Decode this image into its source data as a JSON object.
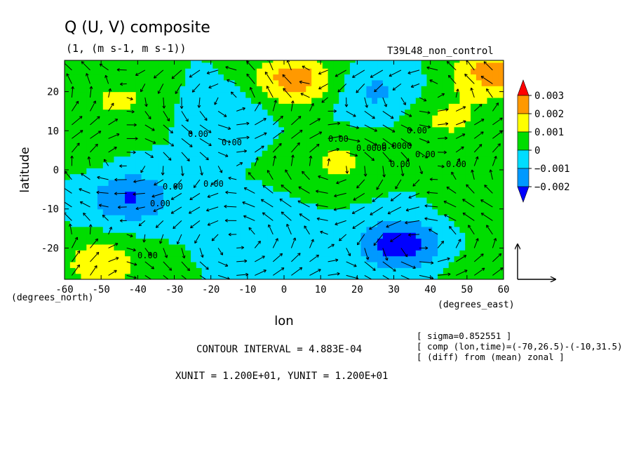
{
  "chart_data": {
    "type": "heatmap",
    "title": "Q (U, V) composite",
    "subtitle": "(1, (m s-1, m s-1))",
    "run_label": "T39L48_non_control",
    "xlabel": "lon",
    "ylabel": "latitude",
    "x_unit_label": "(degrees_east)",
    "y_unit_label": "(degrees_north)",
    "xlim": [
      -60,
      60
    ],
    "ylim": [
      -28,
      28
    ],
    "x_ticks": [
      "-60",
      "-50",
      "-40",
      "-30",
      "-20",
      "-10",
      "0",
      "10",
      "20",
      "30",
      "40",
      "50",
      "60"
    ],
    "y_ticks": [
      "20",
      "10",
      "0",
      "-10",
      "-20"
    ],
    "colorbar": {
      "levels": [
        "0.003",
        "0.002",
        "0.001",
        "0",
        "−0.001",
        "−0.002"
      ],
      "colors": [
        "#ff0000",
        "#ff9900",
        "#ffff00",
        "#00dd00",
        "#00ddff",
        "#0099ff",
        "#0000ff"
      ]
    },
    "contour_labels": [
      "0.00",
      "0.00",
      "0.00",
      "0.0000",
      "0.0000",
      "0.00",
      "0.00",
      "0.00",
      "0.00",
      "0.00",
      "0.00",
      "0.00",
      "0.00"
    ],
    "contour_interval": "CONTOUR INTERVAL = 4.883E-04",
    "vector_units": "XUNIT = 1.200E+01, YUNIT = 1.200E+01",
    "info": [
      "[ sigma=0.852551 ]",
      "[ comp (lon,time)=(-70,26.5)-(-10,31.5)",
      "[ (diff) from (mean) zonal ]"
    ],
    "anomaly_centers": [
      {
        "lon": -45,
        "lat": 18,
        "value": 0.0012
      },
      {
        "lon": 3,
        "lat": 23,
        "value": 0.0026
      },
      {
        "lon": 25,
        "lat": 20,
        "value": -0.0012
      },
      {
        "lon": 45,
        "lat": 13,
        "value": 0.0012
      },
      {
        "lon": 57,
        "lat": 25,
        "value": 0.0025
      },
      {
        "lon": -15,
        "lat": 15,
        "value": -0.0008
      },
      {
        "lon": 15,
        "lat": 2,
        "value": 0.0012
      },
      {
        "lon": -42,
        "lat": -7,
        "value": -0.0021
      },
      {
        "lon": 32,
        "lat": -19,
        "value": -0.0027
      },
      {
        "lon": -50,
        "lat": -24,
        "value": 0.0017
      },
      {
        "lon": -55,
        "lat": 5,
        "value": 0.0004
      },
      {
        "lon": 55,
        "lat": -8,
        "value": 0.0009
      },
      {
        "lon": -5,
        "lat": -16,
        "value": -0.0006
      },
      {
        "lon": 50,
        "lat": -25,
        "value": 0.0004
      }
    ]
  }
}
